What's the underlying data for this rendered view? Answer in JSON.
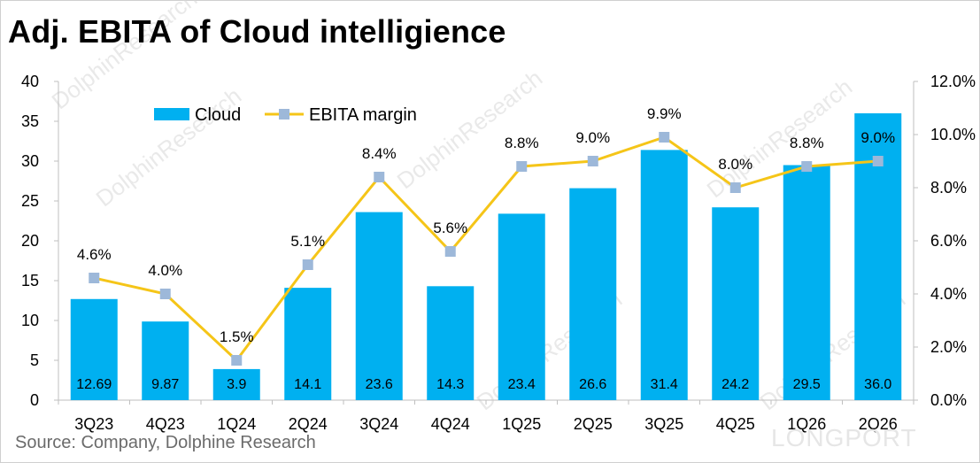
{
  "title": "Adj. EBITA of Cloud intelligience",
  "source": "Source:  Company, Dolphine Research",
  "watermark": "DolphinResearch",
  "corner_watermark": "LONGPORT",
  "colors": {
    "bar": "#00B0F0",
    "line": "#F5C518",
    "marker": "#9DB8D9",
    "axis": "#bfbfbf",
    "text": "#000000"
  },
  "chart_data": {
    "type": "bar",
    "title": "Adj. EBITA of Cloud intelligience",
    "categories": [
      "3Q23",
      "4Q23",
      "1Q24",
      "2Q24",
      "3Q24",
      "4Q24",
      "1Q25",
      "2Q25",
      "3Q25",
      "4Q25",
      "1Q26",
      "2Q26"
    ],
    "series": [
      {
        "name": "Cloud",
        "type": "bar",
        "axis": "left",
        "values": [
          12.69,
          9.87,
          3.9,
          14.1,
          23.6,
          14.3,
          23.4,
          26.6,
          31.4,
          24.2,
          29.5,
          36.0
        ],
        "labels": [
          "12.69",
          "9.87",
          "3.9",
          "14.1",
          "23.6",
          "14.3",
          "23.4",
          "26.6",
          "31.4",
          "24.2",
          "29.5",
          "36.0"
        ]
      },
      {
        "name": "EBITA margin",
        "type": "line",
        "axis": "right",
        "values": [
          4.6,
          4.0,
          1.5,
          5.1,
          8.4,
          5.6,
          8.8,
          9.0,
          9.9,
          8.0,
          8.8,
          9.0
        ],
        "labels": [
          "4.6%",
          "4.0%",
          "1.5%",
          "5.1%",
          "8.4%",
          "5.6%",
          "8.8%",
          "9.0%",
          "9.9%",
          "8.0%",
          "8.8%",
          "9.0%"
        ]
      }
    ],
    "y_left": {
      "min": 0,
      "max": 40,
      "ticks": [
        "0",
        "5",
        "10",
        "15",
        "20",
        "25",
        "30",
        "35",
        "40"
      ]
    },
    "y_right": {
      "min": 0,
      "max": 12,
      "ticks": [
        "0.0%",
        "2.0%",
        "4.0%",
        "6.0%",
        "8.0%",
        "10.0%",
        "12.0%"
      ]
    },
    "grid": false,
    "legend": {
      "position": "top-left",
      "entries": [
        "Cloud",
        "EBITA margin"
      ]
    }
  }
}
